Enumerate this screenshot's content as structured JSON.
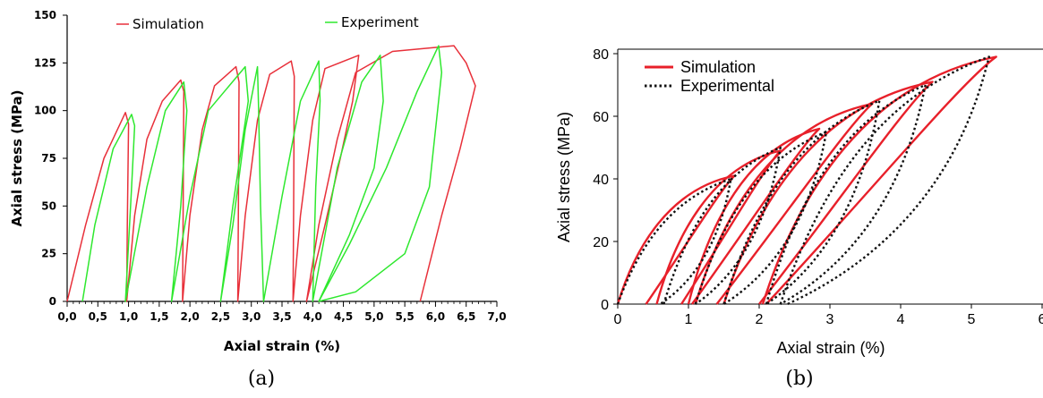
{
  "captions": {
    "a": "(a)",
    "b": "(b)"
  },
  "chart_data": [
    {
      "id": "a",
      "type": "line",
      "xlabel": "Axial strain (%)",
      "ylabel": "Axial stress (MPa)",
      "xlim": [
        0,
        7
      ],
      "ylim": [
        0,
        150
      ],
      "xticks": [
        0,
        0.5,
        1,
        1.5,
        2,
        2.5,
        3,
        3.5,
        4,
        4.5,
        5,
        5.5,
        6,
        6.5,
        7
      ],
      "xtick_labels": [
        "0,0",
        "0,5",
        "1,0",
        "1,5",
        "2,0",
        "2,5",
        "3,0",
        "3,5",
        "4,0",
        "4,5",
        "5,0",
        "5,5",
        "6,0",
        "6,5",
        "7,0"
      ],
      "yticks": [
        0,
        25,
        50,
        75,
        100,
        125,
        150
      ],
      "ytick_labels": [
        "0",
        "25",
        "50",
        "75",
        "100",
        "125",
        "150"
      ],
      "grid": false,
      "legend_position": "top",
      "series": [
        {
          "name": "Simulation",
          "color": "#e8303a",
          "loops": [
            {
              "start": [
                0.0,
                0
              ],
              "peak": [
                0.95,
                99
              ],
              "unload_end": [
                0.97,
                0
              ]
            },
            {
              "start": [
                0.97,
                0
              ],
              "peak": [
                1.85,
                116
              ],
              "unload_end": [
                1.88,
                0
              ]
            },
            {
              "start": [
                1.88,
                0
              ],
              "peak": [
                2.75,
                123
              ],
              "unload_end": [
                2.78,
                0
              ]
            },
            {
              "start": [
                2.78,
                0
              ],
              "peak": [
                3.65,
                126
              ],
              "unload_end": [
                3.68,
                0
              ]
            },
            {
              "start": [
                3.68,
                0
              ],
              "peak": [
                4.75,
                129
              ],
              "unload_end": [
                3.9,
                0
              ]
            },
            {
              "start": [
                3.9,
                0
              ],
              "peak": [
                6.3,
                134
              ],
              "unload_end": [
                5.75,
                0
              ]
            }
          ],
          "path": [
            [
              0.0,
              0
            ],
            [
              0.3,
              40
            ],
            [
              0.6,
              75
            ],
            [
              0.95,
              99
            ],
            [
              1.0,
              93
            ],
            [
              0.98,
              40
            ],
            [
              0.97,
              0
            ],
            [
              1.1,
              45
            ],
            [
              1.3,
              85
            ],
            [
              1.55,
              105
            ],
            [
              1.85,
              116
            ],
            [
              1.9,
              110
            ],
            [
              1.89,
              50
            ],
            [
              1.88,
              0
            ],
            [
              2.0,
              45
            ],
            [
              2.2,
              90
            ],
            [
              2.4,
              113
            ],
            [
              2.75,
              123
            ],
            [
              2.8,
              115
            ],
            [
              2.79,
              50
            ],
            [
              2.78,
              0
            ],
            [
              2.9,
              45
            ],
            [
              3.1,
              95
            ],
            [
              3.3,
              119
            ],
            [
              3.65,
              126
            ],
            [
              3.7,
              118
            ],
            [
              3.69,
              50
            ],
            [
              3.68,
              0
            ],
            [
              3.8,
              45
            ],
            [
              4.0,
              95
            ],
            [
              4.2,
              122
            ],
            [
              4.75,
              129
            ],
            [
              4.65,
              105
            ],
            [
              4.45,
              75
            ],
            [
              4.2,
              40
            ],
            [
              3.9,
              0
            ],
            [
              4.1,
              40
            ],
            [
              4.4,
              85
            ],
            [
              4.7,
              120
            ],
            [
              5.3,
              131
            ],
            [
              6.3,
              134
            ],
            [
              6.5,
              125
            ],
            [
              6.65,
              113
            ],
            [
              6.4,
              80
            ],
            [
              6.1,
              45
            ],
            [
              5.75,
              0
            ]
          ]
        },
        {
          "name": "Experiment",
          "color": "#2ee82e",
          "loops": [
            {
              "start": [
                0.25,
                0
              ],
              "peak": [
                1.05,
                98
              ],
              "unload_end": [
                0.95,
                0
              ]
            },
            {
              "start": [
                0.95,
                0
              ],
              "peak": [
                1.9,
                115
              ],
              "unload_end": [
                1.7,
                0
              ]
            },
            {
              "start": [
                1.7,
                0
              ],
              "peak": [
                2.9,
                123
              ],
              "unload_end": [
                2.5,
                0
              ]
            },
            {
              "start": [
                2.5,
                0
              ],
              "peak": [
                3.1,
                123
              ],
              "unload_end": [
                3.2,
                0
              ]
            },
            {
              "start": [
                3.2,
                0
              ],
              "peak": [
                4.1,
                126
              ],
              "unload_end": [
                4.0,
                0
              ]
            },
            {
              "start": [
                4.0,
                0
              ],
              "peak": [
                6.05,
                134
              ],
              "unload_end": [
                4.1,
                0
              ]
            }
          ],
          "path": [
            [
              0.25,
              0
            ],
            [
              0.45,
              40
            ],
            [
              0.75,
              80
            ],
            [
              1.05,
              98
            ],
            [
              1.1,
              92
            ],
            [
              1.05,
              60
            ],
            [
              0.95,
              0
            ],
            [
              1.3,
              60
            ],
            [
              1.6,
              100
            ],
            [
              1.9,
              115
            ],
            [
              1.95,
              100
            ],
            [
              1.85,
              50
            ],
            [
              1.7,
              0
            ],
            [
              2.0,
              55
            ],
            [
              2.3,
              100
            ],
            [
              2.9,
              123
            ],
            [
              2.95,
              105
            ],
            [
              2.7,
              50
            ],
            [
              2.5,
              0
            ],
            [
              2.7,
              40
            ],
            [
              2.9,
              90
            ],
            [
              3.1,
              123
            ],
            [
              3.12,
              100
            ],
            [
              3.15,
              50
            ],
            [
              3.2,
              0
            ],
            [
              3.5,
              55
            ],
            [
              3.8,
              105
            ],
            [
              4.1,
              126
            ],
            [
              4.12,
              105
            ],
            [
              4.05,
              60
            ],
            [
              4.0,
              0
            ],
            [
              4.4,
              70
            ],
            [
              4.8,
              115
            ],
            [
              5.1,
              129
            ],
            [
              5.15,
              105
            ],
            [
              5.0,
              70
            ],
            [
              4.6,
              35
            ],
            [
              4.1,
              0
            ],
            [
              4.6,
              30
            ],
            [
              5.2,
              70
            ],
            [
              5.7,
              110
            ],
            [
              6.05,
              134
            ],
            [
              6.1,
              120
            ],
            [
              5.9,
              60
            ],
            [
              5.5,
              25
            ],
            [
              4.7,
              5
            ],
            [
              4.1,
              0
            ]
          ]
        }
      ]
    },
    {
      "id": "b",
      "type": "line",
      "xlabel": "Axial strain (%)",
      "ylabel": "Axial stress (MPa)",
      "xlim": [
        0,
        6
      ],
      "ylim": [
        0,
        80
      ],
      "xticks": [
        0,
        1,
        2,
        3,
        4,
        5,
        6
      ],
      "xtick_labels": [
        "0",
        "1",
        "2",
        "3",
        "4",
        "5",
        "6"
      ],
      "yticks": [
        0,
        20,
        40,
        60,
        80
      ],
      "ytick_labels": [
        "0",
        "20",
        "40",
        "60",
        "80"
      ],
      "grid": false,
      "legend_position": "top-left",
      "series": [
        {
          "name": "Simulation",
          "color": "#e8202a",
          "style": "solid",
          "loops": [
            {
              "start": [
                0.0,
                0
              ],
              "peak": [
                1.65,
                41
              ],
              "unload_end": [
                0.4,
                0
              ]
            },
            {
              "start": [
                0.55,
                0
              ],
              "peak": [
                2.3,
                49
              ],
              "unload_end": [
                0.9,
                0
              ]
            },
            {
              "start": [
                1.0,
                0
              ],
              "peak": [
                2.85,
                56
              ],
              "unload_end": [
                1.05,
                0
              ]
            },
            {
              "start": [
                1.1,
                0
              ],
              "peak": [
                3.6,
                64
              ],
              "unload_end": [
                1.4,
                0
              ]
            },
            {
              "start": [
                1.5,
                0
              ],
              "peak": [
                4.45,
                71
              ],
              "unload_end": [
                2.0,
                0
              ]
            },
            {
              "start": [
                2.05,
                0
              ],
              "peak": [
                5.35,
                79
              ],
              "unload_end": [
                2.1,
                0
              ]
            }
          ]
        },
        {
          "name": "Experimental",
          "color": "#111111",
          "style": "dotted",
          "loops": [
            {
              "start": [
                0.0,
                0
              ],
              "peak": [
                1.6,
                40
              ],
              "unload_end": [
                0.6,
                0
              ]
            },
            {
              "start": [
                0.65,
                0
              ],
              "peak": [
                2.3,
                50
              ],
              "unload_end": [
                1.1,
                0
              ]
            },
            {
              "start": [
                1.1,
                0
              ],
              "peak": [
                2.95,
                55
              ],
              "unload_end": [
                1.5,
                0
              ]
            },
            {
              "start": [
                1.5,
                0
              ],
              "peak": [
                3.7,
                65
              ],
              "unload_end": [
                2.1,
                0
              ]
            },
            {
              "start": [
                2.1,
                0
              ],
              "peak": [
                4.35,
                70
              ],
              "unload_end": [
                2.3,
                0
              ]
            },
            {
              "start": [
                2.3,
                0
              ],
              "peak": [
                5.25,
                79
              ],
              "unload_end": [
                2.4,
                0
              ]
            }
          ]
        }
      ]
    }
  ]
}
